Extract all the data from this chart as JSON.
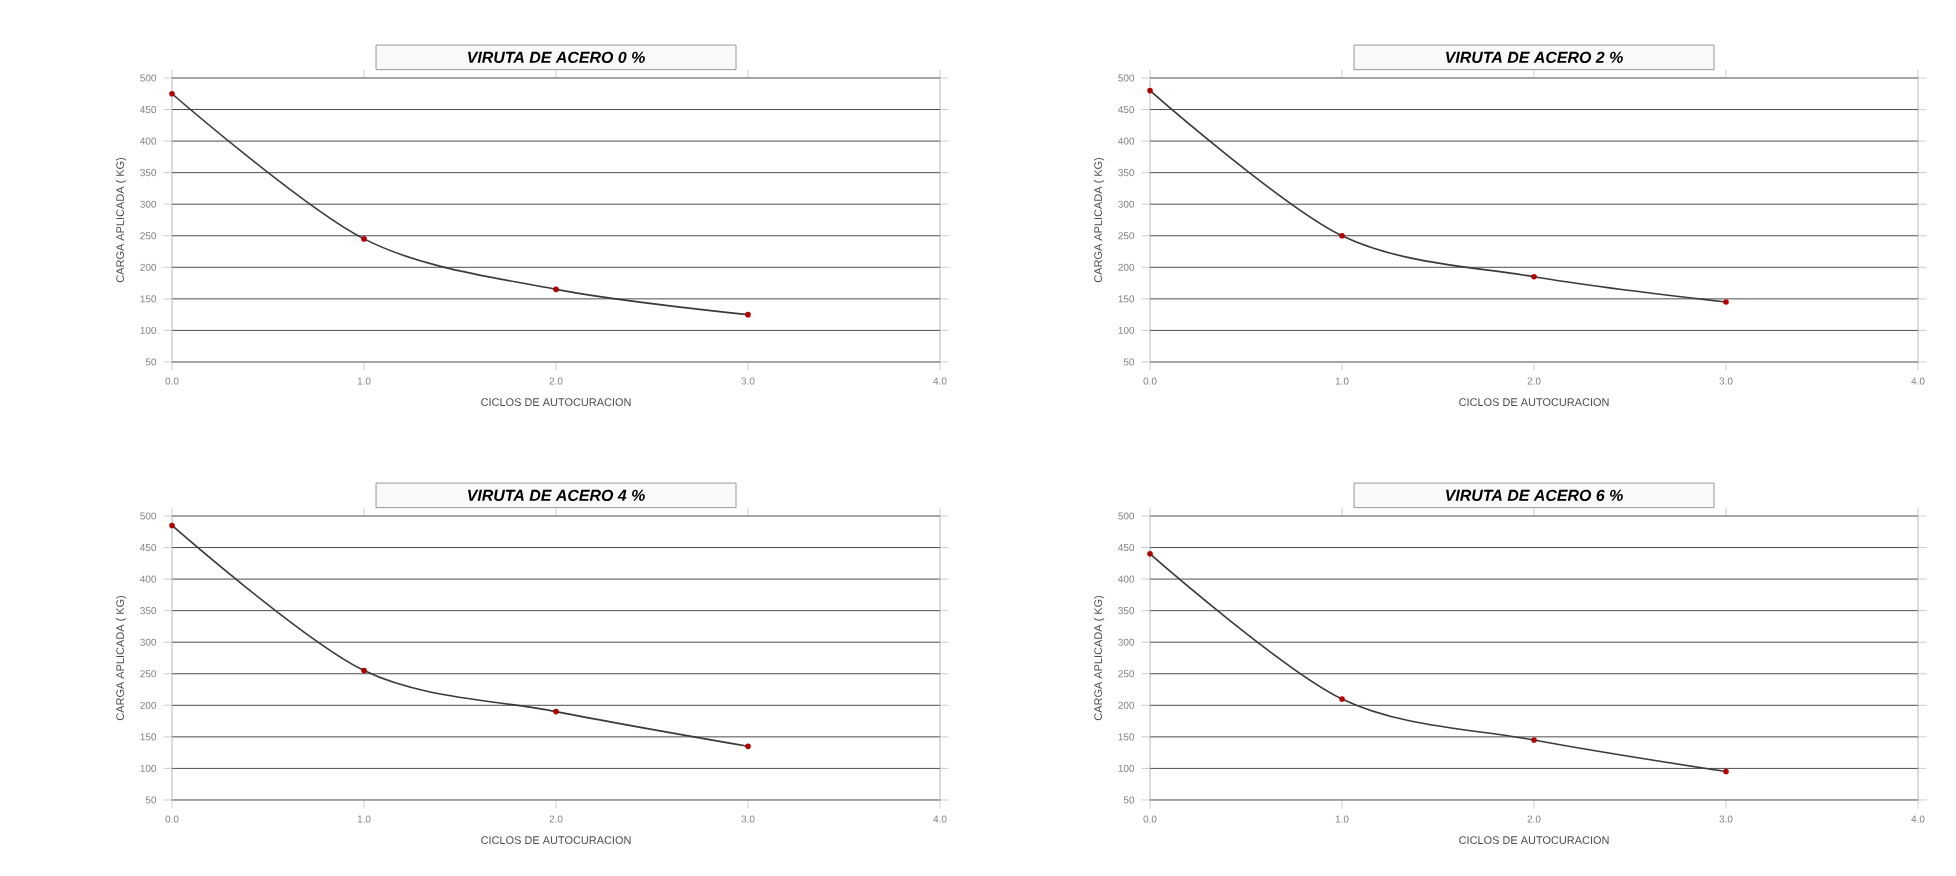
{
  "chart_data": [
    {
      "type": "line",
      "title": "VIRUTA DE ACERO 0 %",
      "xlabel": "CICLOS DE AUTOCURACION",
      "ylabel": "CARGA APLICADA ( KG)",
      "x": [
        0,
        1,
        2,
        3
      ],
      "series": [
        {
          "color": "#3a3a3a",
          "values": [
            475,
            245,
            165,
            125
          ]
        }
      ],
      "xlim": [
        0,
        4
      ],
      "ylim": [
        50,
        500
      ],
      "xticks": [
        {
          "value": 0,
          "label": "0.0"
        },
        {
          "value": 1,
          "label": "1.0"
        },
        {
          "value": 2,
          "label": "2.0"
        },
        {
          "value": 3,
          "label": "3.0"
        },
        {
          "value": 4,
          "label": "4.0"
        }
      ],
      "yticks": [
        50,
        100,
        150,
        200,
        250,
        300,
        350,
        400,
        450,
        500
      ],
      "grid": "y",
      "marker": "circle",
      "line_style": "solid"
    },
    {
      "type": "line",
      "title": "VIRUTA DE ACERO 2 %",
      "xlabel": "CICLOS DE AUTOCURACION",
      "ylabel": "CARGA APLICADA ( KG)",
      "x": [
        0,
        1,
        2,
        3
      ],
      "series": [
        {
          "color": "#3a3a3a",
          "values": [
            480,
            250,
            185,
            145
          ]
        }
      ],
      "xlim": [
        0,
        4
      ],
      "ylim": [
        50,
        500
      ],
      "xticks": [
        {
          "value": 0,
          "label": "0.0"
        },
        {
          "value": 1,
          "label": "1.0"
        },
        {
          "value": 2,
          "label": "2.0"
        },
        {
          "value": 3,
          "label": "3.0"
        },
        {
          "value": 4,
          "label": "4.0"
        }
      ],
      "yticks": [
        50,
        100,
        150,
        200,
        250,
        300,
        350,
        400,
        450,
        500
      ],
      "grid": "y",
      "marker": "circle",
      "line_style": "solid"
    },
    {
      "type": "line",
      "title": "VIRUTA DE ACERO 4 %",
      "xlabel": "CICLOS DE AUTOCURACION",
      "ylabel": "CARGA APLICADA ( KG)",
      "x": [
        0,
        1,
        2,
        3
      ],
      "series": [
        {
          "color": "#3a3a3a",
          "values": [
            485,
            255,
            190,
            135
          ]
        }
      ],
      "xlim": [
        0,
        4
      ],
      "ylim": [
        50,
        500
      ],
      "xticks": [
        {
          "value": 0,
          "label": "0.0"
        },
        {
          "value": 1,
          "label": "1.0"
        },
        {
          "value": 2,
          "label": "2.0"
        },
        {
          "value": 3,
          "label": "3.0"
        },
        {
          "value": 4,
          "label": "4.0"
        }
      ],
      "yticks": [
        50,
        100,
        150,
        200,
        250,
        300,
        350,
        400,
        450,
        500
      ],
      "grid": "y",
      "marker": "circle",
      "line_style": "solid"
    },
    {
      "type": "line",
      "title": "VIRUTA DE ACERO 6 %",
      "xlabel": "CICLOS DE AUTOCURACION",
      "ylabel": "CARGA APLICADA ( KG)",
      "x": [
        0,
        1,
        2,
        3
      ],
      "series": [
        {
          "color": "#3a3a3a",
          "values": [
            440,
            210,
            145,
            95
          ]
        }
      ],
      "xlim": [
        0,
        4
      ],
      "ylim": [
        50,
        500
      ],
      "xticks": [
        {
          "value": 0,
          "label": "0.0"
        },
        {
          "value": 1,
          "label": "1.0"
        },
        {
          "value": 2,
          "label": "2.0"
        },
        {
          "value": 3,
          "label": "3.0"
        },
        {
          "value": 4,
          "label": "4.0"
        }
      ],
      "yticks": [
        50,
        100,
        150,
        200,
        250,
        300,
        350,
        400,
        450,
        500
      ],
      "grid": "y",
      "marker": "circle",
      "line_style": "solid"
    }
  ]
}
